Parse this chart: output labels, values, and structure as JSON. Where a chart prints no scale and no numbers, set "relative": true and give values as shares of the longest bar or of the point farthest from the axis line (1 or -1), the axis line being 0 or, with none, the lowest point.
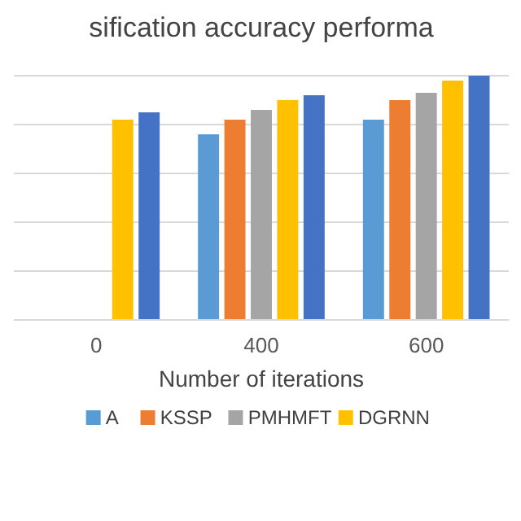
{
  "chart_data": {
    "type": "bar",
    "title": "sification accuracy performa",
    "xlabel": "Number of iterations",
    "categories": [
      "0",
      "400",
      "600"
    ],
    "relative": true,
    "grid": "y",
    "legend": "bottom",
    "series": [
      {
        "name": "A",
        "color": "#5b9bd5",
        "values": [
          null,
          0.76,
          0.82
        ]
      },
      {
        "name": "KSSP",
        "color": "#ed7d31",
        "values": [
          null,
          0.82,
          0.9
        ]
      },
      {
        "name": "PMHMFT",
        "color": "#a5a5a5",
        "values": [
          null,
          0.86,
          0.93
        ]
      },
      {
        "name": "DGRNN",
        "color": "#ffc000",
        "values": [
          0.82,
          0.9,
          0.98
        ]
      },
      {
        "color": "#4472c4",
        "values": [
          0.85,
          0.92,
          1.0
        ]
      }
    ]
  }
}
